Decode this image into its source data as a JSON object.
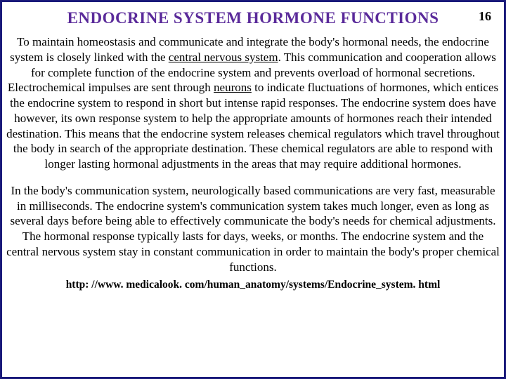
{
  "colors": {
    "border": "#1a1a7a",
    "title": "#5a2a9a",
    "text": "#000000",
    "background": "#ffffff"
  },
  "typography": {
    "title_fontsize": 23,
    "body_fontsize": 17,
    "footer_fontsize": 15.5,
    "line_height": 1.28,
    "font_family": "Times New Roman"
  },
  "header": {
    "title": "ENDOCRINE SYSTEM HORMONE FUNCTIONS",
    "page_number": "16"
  },
  "body": {
    "p1_a": "To maintain homeostasis and communicate and integrate the body's hormonal needs, the endocrine system is closely linked with the ",
    "p1_u1": "central nervous system",
    "p1_b": ". This communication and cooperation allows for complete function of the endocrine system and prevents overload of hormonal secretions. Electrochemical impulses are sent through ",
    "p1_u2": "neurons",
    "p1_c": " to indicate fluctuations of hormones, which entices the endocrine system to respond in short but intense rapid responses. The endocrine system does have however, its own response system to help the appropriate amounts of hormones reach their intended destination. This means that the endocrine system releases chemical regulators which travel throughout the body in search of the appropriate destination. These chemical regulators are able to respond with longer lasting hormonal adjustments in the areas that may require additional hormones.",
    "p2": "In the body's communication system, neurologically based communications are very fast, measurable in milliseconds. The endocrine system's communication system takes much longer, even as long as several days before being able to effectively communicate the body's needs for chemical adjustments. The hormonal response typically lasts for days, weeks, or months. The endocrine system and the central nervous system stay in constant communication in order to maintain the body's proper chemical functions."
  },
  "footer": {
    "url": "http: //www. medicalook. com/human_anatomy/systems/Endocrine_system. html"
  }
}
